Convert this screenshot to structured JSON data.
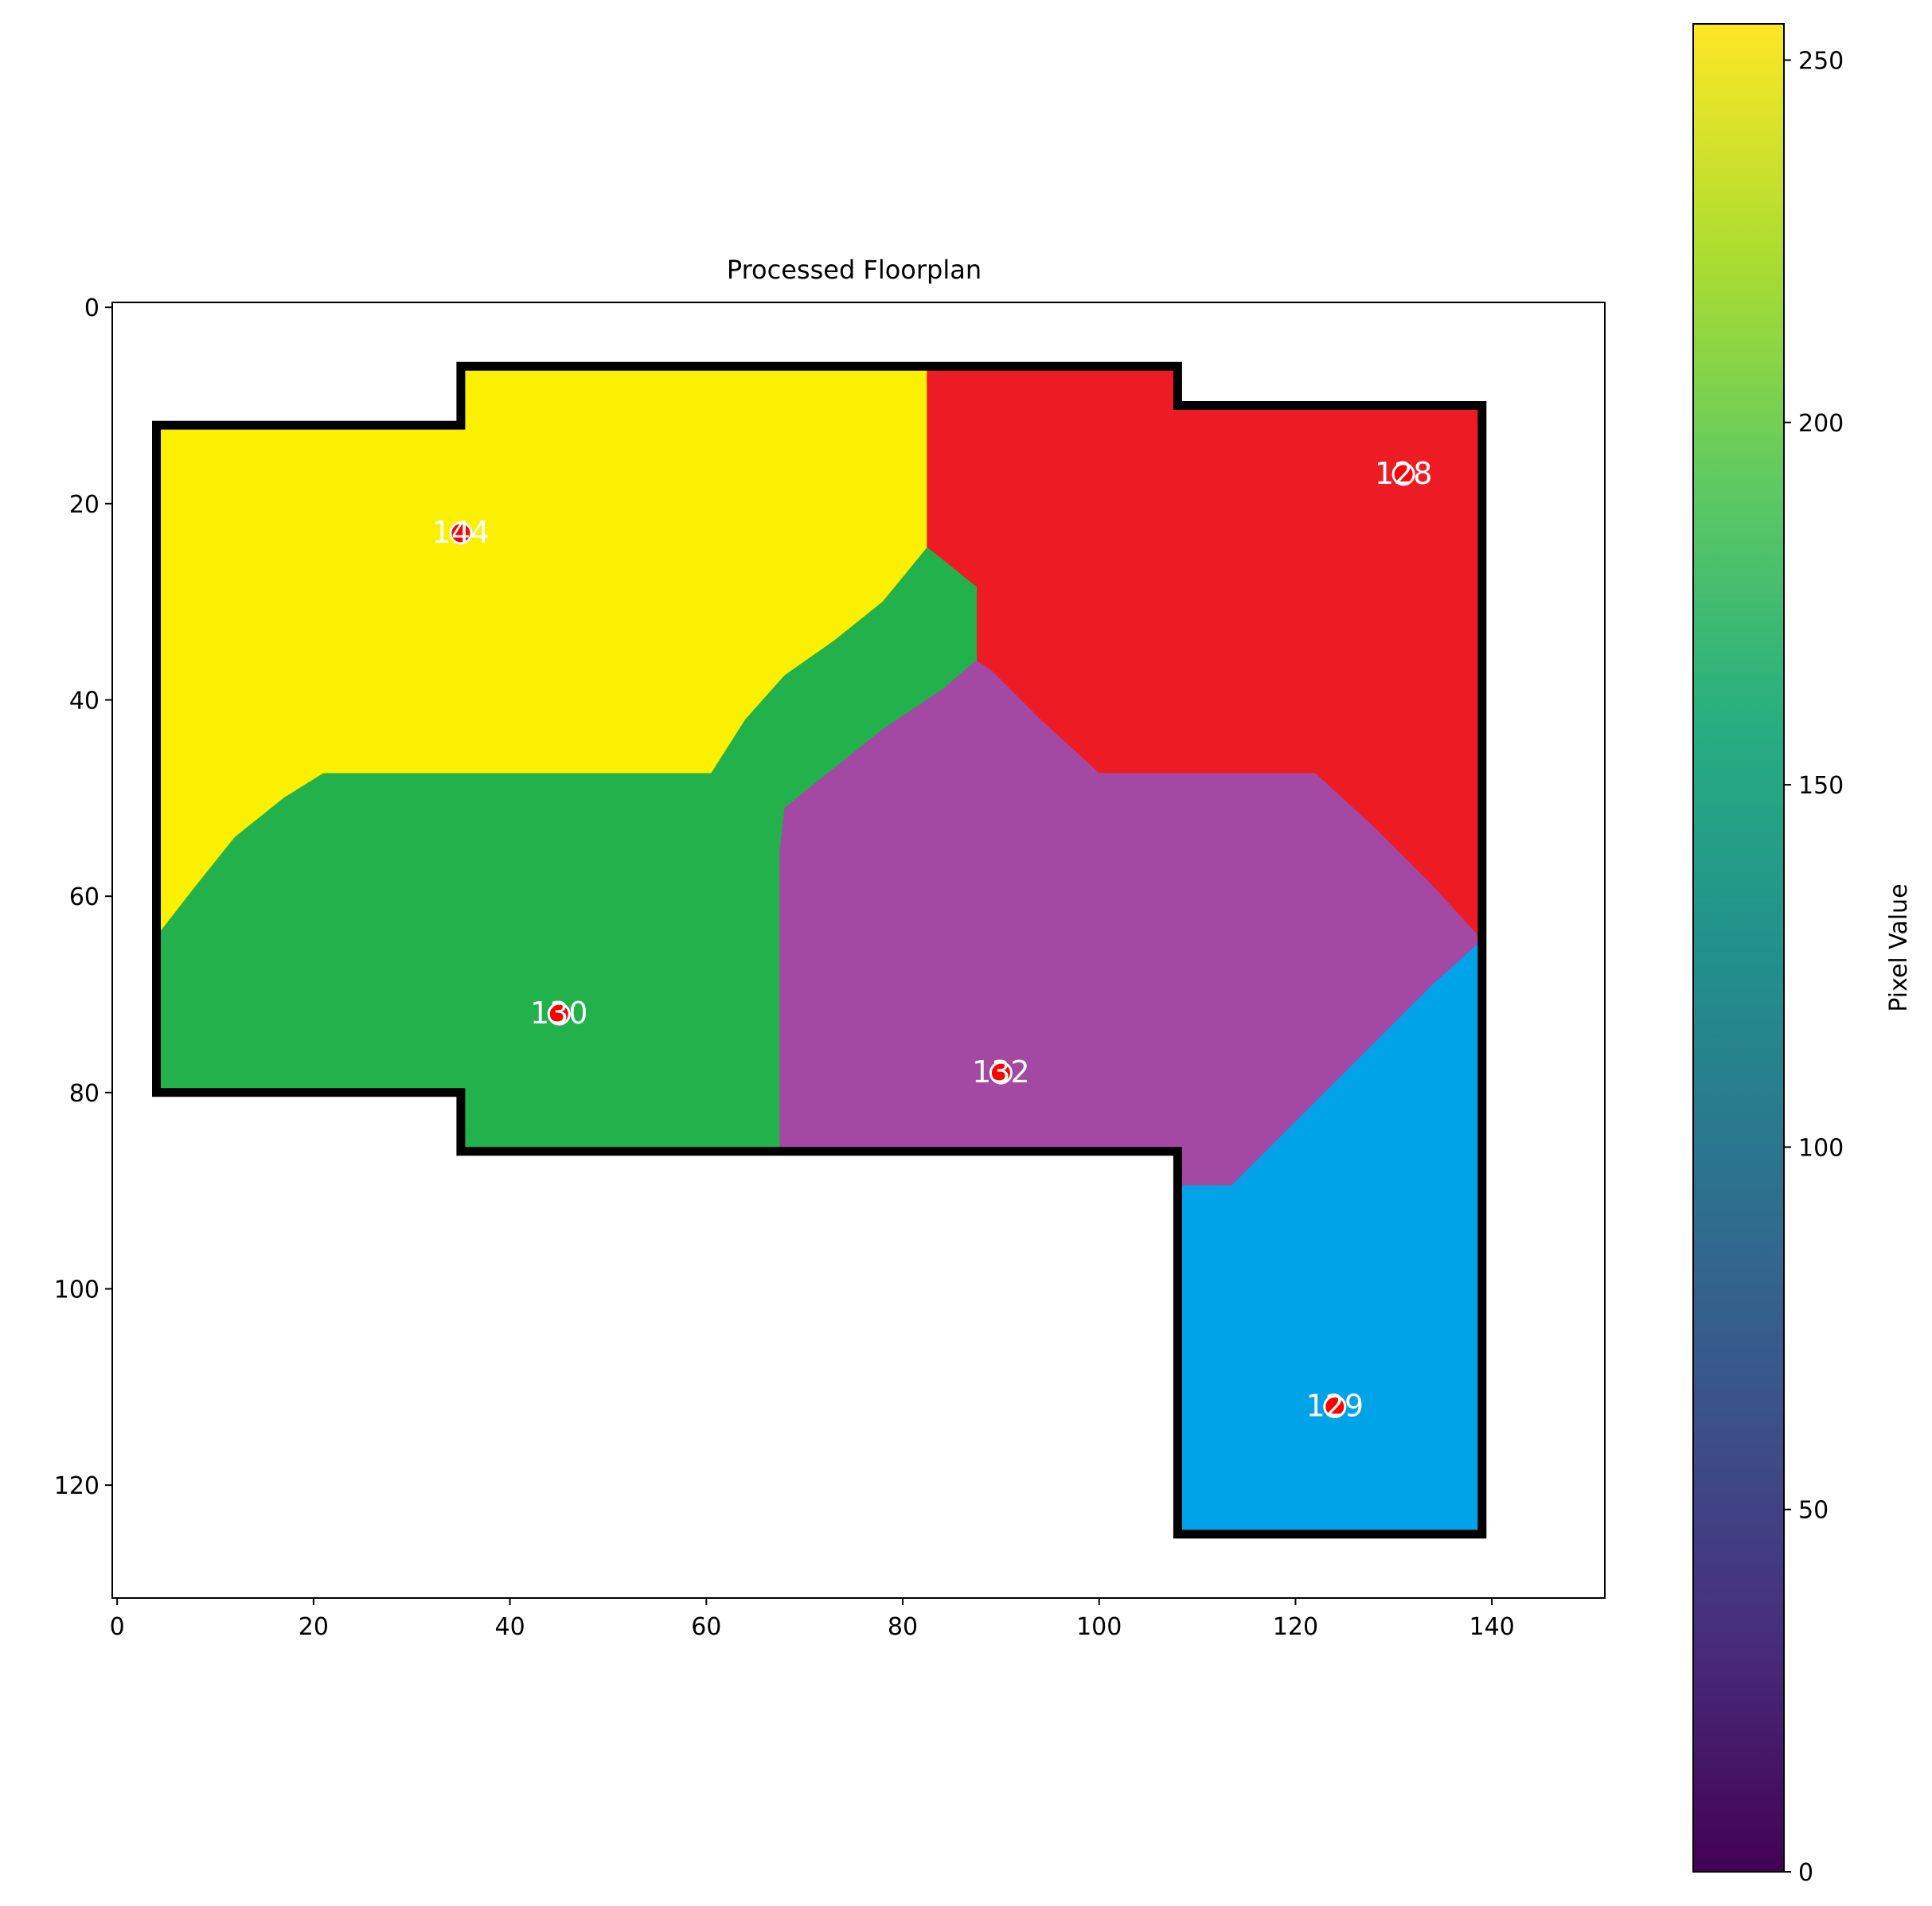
{
  "chart_data": {
    "type": "heatmap",
    "title": "Processed Floorplan",
    "xlabel": "",
    "ylabel": "",
    "xlim": [
      -0.5,
      151.5
    ],
    "ylim": [
      131.5,
      -0.5
    ],
    "x_ticks": [
      0,
      20,
      40,
      60,
      80,
      100,
      120,
      140
    ],
    "y_ticks": [
      0,
      20,
      40,
      60,
      80,
      100,
      120
    ],
    "colorbar": {
      "label": "Pixel Value",
      "range": [
        0,
        255
      ],
      "ticks": [
        0,
        50,
        100,
        150,
        200,
        250
      ],
      "colormap": "viridis"
    },
    "outline": [
      [
        4,
        12
      ],
      [
        35,
        12
      ],
      [
        35,
        6
      ],
      [
        108,
        6
      ],
      [
        108,
        10
      ],
      [
        139,
        10
      ],
      [
        139,
        125
      ],
      [
        108,
        125
      ],
      [
        108,
        86
      ],
      [
        35,
        86
      ],
      [
        35,
        80
      ],
      [
        4,
        80
      ]
    ],
    "rooms": [
      {
        "label": "144",
        "color": "#fbf000",
        "center": [
          35,
          23
        ],
        "polygon": [
          [
            4,
            12
          ],
          [
            35,
            12
          ],
          [
            35,
            6
          ],
          [
            82.5,
            6
          ],
          [
            82.5,
            24.5
          ],
          [
            78,
            30
          ],
          [
            73,
            34
          ],
          [
            68,
            37.5
          ],
          [
            64,
            42
          ],
          [
            60.5,
            47.5
          ],
          [
            21,
            47.5
          ],
          [
            17,
            50
          ],
          [
            12,
            54
          ],
          [
            8,
            59
          ],
          [
            4.5,
            63.5
          ],
          [
            4,
            63.5
          ]
        ]
      },
      {
        "label": "128",
        "color": "#ed1c24",
        "center": [
          131,
          17
        ],
        "polygon": [
          [
            82.5,
            6
          ],
          [
            108,
            6
          ],
          [
            108,
            10
          ],
          [
            139,
            10
          ],
          [
            139,
            64.5
          ],
          [
            134,
            59
          ],
          [
            128,
            53
          ],
          [
            122,
            47.5
          ],
          [
            100,
            47.5
          ],
          [
            94,
            42
          ],
          [
            89,
            37
          ],
          [
            87.5,
            36
          ],
          [
            87.5,
            28.5
          ],
          [
            85,
            26.5
          ],
          [
            82.5,
            24.5
          ]
        ]
      },
      {
        "label": "130",
        "color": "#23b14c",
        "center": [
          45,
          72
        ],
        "polygon": [
          [
            4,
            63.5
          ],
          [
            4.5,
            63.5
          ],
          [
            8,
            59
          ],
          [
            12,
            54
          ],
          [
            17,
            50
          ],
          [
            21,
            47.5
          ],
          [
            60.5,
            47.5
          ],
          [
            64,
            42
          ],
          [
            68,
            37.5
          ],
          [
            73,
            34
          ],
          [
            78,
            30
          ],
          [
            82.5,
            24.5
          ],
          [
            85,
            26.5
          ],
          [
            87.5,
            28.5
          ],
          [
            87.5,
            36
          ],
          [
            84,
            39
          ],
          [
            78,
            43
          ],
          [
            73,
            47
          ],
          [
            68,
            51
          ],
          [
            67.5,
            55.5
          ],
          [
            67.5,
            86
          ],
          [
            35,
            86
          ],
          [
            35,
            80
          ],
          [
            4,
            80
          ]
        ]
      },
      {
        "label": "132",
        "color": "#a349a4",
        "center": [
          90,
          78
        ],
        "polygon": [
          [
            67.5,
            55.5
          ],
          [
            68,
            51
          ],
          [
            73,
            47
          ],
          [
            78,
            43
          ],
          [
            84,
            39
          ],
          [
            87.5,
            36
          ],
          [
            89,
            37
          ],
          [
            94,
            42
          ],
          [
            100,
            47.5
          ],
          [
            122,
            47.5
          ],
          [
            128,
            53
          ],
          [
            134,
            59
          ],
          [
            139,
            64.5
          ],
          [
            134,
            69
          ],
          [
            128,
            75
          ],
          [
            122,
            81
          ],
          [
            118,
            85
          ],
          [
            113.5,
            89.5
          ],
          [
            108.5,
            89.5
          ],
          [
            108,
            86
          ],
          [
            67.5,
            86
          ]
        ]
      },
      {
        "label": "129",
        "color": "#00a2e8",
        "center": [
          124,
          112
        ],
        "polygon": [
          [
            108.5,
            89.5
          ],
          [
            113.5,
            89.5
          ],
          [
            118,
            85
          ],
          [
            122,
            81
          ],
          [
            128,
            75
          ],
          [
            134,
            69
          ],
          [
            139,
            64.5
          ],
          [
            139,
            125
          ],
          [
            108,
            125
          ],
          [
            108,
            89.5
          ]
        ]
      }
    ]
  }
}
